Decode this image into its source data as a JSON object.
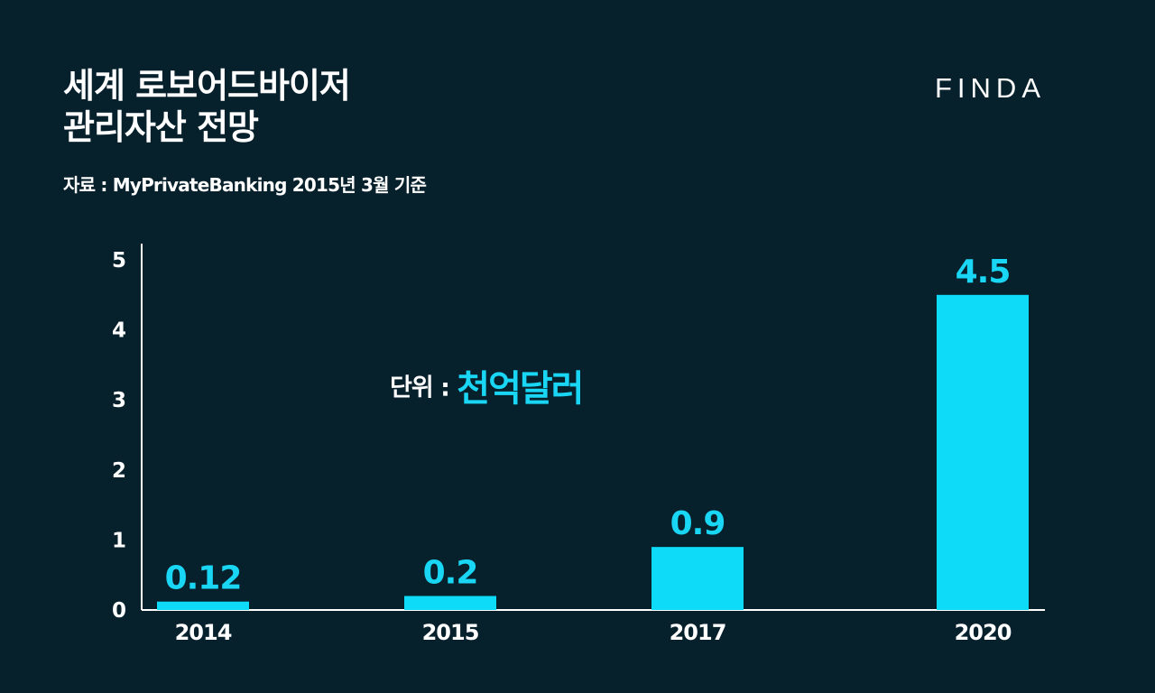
{
  "header": {
    "title_line1": "세계 로보어드바이저",
    "title_line2": "관리자산 전망",
    "source": "자료 : MyPrivateBanking 2015년 3월 기준",
    "logo": "FINDA"
  },
  "unit_note": {
    "label": "단위 : ",
    "value": "천억달러"
  },
  "colors": {
    "background": "#06202c",
    "bar": "#0ddbf7",
    "value_label": "#1ad6f5",
    "axis": "#ffffff"
  },
  "chart_data": {
    "type": "bar",
    "categories": [
      "2014",
      "2015",
      "2017",
      "2020"
    ],
    "values": [
      0.12,
      0.2,
      0.9,
      4.5
    ],
    "data_labels": [
      "0.12",
      "0.2",
      "0.9",
      "4.5"
    ],
    "y_ticks": [
      "0",
      "1",
      "2",
      "3",
      "4",
      "5"
    ],
    "ylim": [
      0,
      5
    ],
    "title": "",
    "xlabel": "",
    "ylabel": "",
    "grid": false,
    "legend": "none"
  }
}
